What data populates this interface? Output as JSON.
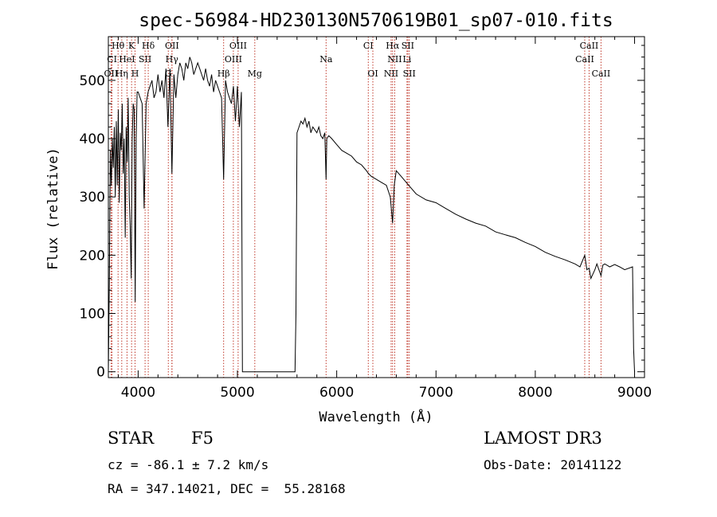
{
  "chart_data": {
    "type": "line",
    "title": "spec-56984-HD230130N570619B01_sp07-010.fits",
    "xlabel": "Wavelength (Å)",
    "ylabel": "Flux (relative)",
    "xlim": [
      3700,
      9100
    ],
    "ylim": [
      -10,
      575
    ],
    "xticks": [
      4000,
      5000,
      6000,
      7000,
      8000,
      9000
    ],
    "yticks": [
      0,
      100,
      200,
      300,
      400,
      500
    ],
    "series": [
      {
        "name": "flux",
        "x": [
          3700,
          3710,
          3720,
          3730,
          3740,
          3750,
          3760,
          3770,
          3780,
          3790,
          3800,
          3810,
          3820,
          3830,
          3840,
          3850,
          3860,
          3870,
          3880,
          3890,
          3900,
          3910,
          3920,
          3930,
          3940,
          3950,
          3960,
          3970,
          3980,
          3990,
          4000,
          4020,
          4040,
          4060,
          4080,
          4100,
          4120,
          4140,
          4160,
          4180,
          4200,
          4220,
          4240,
          4260,
          4280,
          4300,
          4320,
          4340,
          4360,
          4380,
          4400,
          4420,
          4440,
          4460,
          4480,
          4500,
          4520,
          4540,
          4560,
          4580,
          4600,
          4620,
          4640,
          4660,
          4680,
          4700,
          4720,
          4740,
          4760,
          4780,
          4800,
          4820,
          4840,
          4861,
          4880,
          4900,
          4920,
          4940,
          4960,
          4980,
          5000,
          5010,
          5020,
          5040,
          5050,
          5580,
          5590,
          5600,
          5620,
          5640,
          5660,
          5680,
          5700,
          5720,
          5740,
          5760,
          5780,
          5800,
          5820,
          5840,
          5860,
          5880,
          5893,
          5900,
          5920,
          5950,
          6000,
          6050,
          6100,
          6150,
          6200,
          6250,
          6300,
          6320,
          6350,
          6400,
          6450,
          6500,
          6540,
          6563,
          6580,
          6600,
          6650,
          6700,
          6750,
          6800,
          6900,
          7000,
          7100,
          7200,
          7300,
          7400,
          7500,
          7600,
          7700,
          7800,
          7900,
          8000,
          8100,
          8200,
          8300,
          8400,
          8450,
          8498,
          8520,
          8542,
          8560,
          8600,
          8620,
          8662,
          8680,
          8700,
          8750,
          8800,
          8850,
          8900,
          8980,
          8990,
          9000
        ],
        "values": [
          0,
          150,
          380,
          320,
          400,
          350,
          420,
          300,
          430,
          320,
          450,
          290,
          410,
          380,
          460,
          340,
          400,
          230,
          420,
          360,
          470,
          300,
          250,
          160,
          400,
          460,
          450,
          120,
          400,
          480,
          480,
          470,
          460,
          280,
          460,
          480,
          490,
          500,
          470,
          480,
          510,
          480,
          500,
          470,
          520,
          420,
          520,
          340,
          510,
          470,
          510,
          530,
          520,
          500,
          530,
          520,
          540,
          530,
          510,
          520,
          530,
          520,
          510,
          500,
          520,
          500,
          490,
          510,
          480,
          500,
          490,
          480,
          470,
          330,
          500,
          480,
          470,
          460,
          490,
          430,
          490,
          450,
          420,
          480,
          0,
          0,
          100,
          410,
          420,
          430,
          425,
          435,
          420,
          430,
          410,
          420,
          415,
          410,
          420,
          405,
          400,
          410,
          330,
          400,
          405,
          400,
          390,
          380,
          375,
          370,
          360,
          355,
          345,
          340,
          335,
          330,
          325,
          320,
          300,
          255,
          320,
          345,
          335,
          325,
          315,
          305,
          295,
          290,
          280,
          270,
          262,
          255,
          250,
          240,
          235,
          230,
          222,
          215,
          205,
          198,
          192,
          185,
          180,
          200,
          175,
          178,
          160,
          175,
          185,
          165,
          183,
          185,
          180,
          184,
          180,
          175,
          180,
          40,
          0
        ],
        "note": "values sampled approximately from the plotted spectrum"
      }
    ],
    "lines": [
      {
        "label": "Hθ",
        "x": 3798,
        "row": 0
      },
      {
        "label": "K",
        "x": 3934,
        "row": 0
      },
      {
        "label": "Hδ",
        "x": 4102,
        "row": 0
      },
      {
        "label": "OII",
        "x": 4341,
        "row": 0
      },
      {
        "label": "OIII",
        "x": 5007,
        "row": 0
      },
      {
        "label": "CI",
        "x": 6318,
        "row": 0
      },
      {
        "label": "Hα",
        "x": 6563,
        "row": 0
      },
      {
        "label": "SII",
        "x": 6716,
        "row": 0
      },
      {
        "label": "CaII",
        "x": 8542,
        "row": 0
      },
      {
        "label": "CI",
        "x": 3737,
        "row": 1
      },
      {
        "label": "HeI",
        "x": 3888,
        "row": 1
      },
      {
        "label": "SII",
        "x": 4070,
        "row": 1
      },
      {
        "label": "Hγ",
        "x": 4340,
        "row": 1
      },
      {
        "label": "OIII",
        "x": 4959,
        "row": 1
      },
      {
        "label": "Na",
        "x": 5893,
        "row": 1
      },
      {
        "label": "NII",
        "x": 6584,
        "row": 1
      },
      {
        "label": "Li",
        "x": 6708,
        "row": 1
      },
      {
        "label": "CaII",
        "x": 8498,
        "row": 1
      },
      {
        "label": "OII",
        "x": 3727,
        "row": 2
      },
      {
        "label": "Hη",
        "x": 3835,
        "row": 2
      },
      {
        "label": "H",
        "x": 3969,
        "row": 2
      },
      {
        "label": "G",
        "x": 4304,
        "row": 2
      },
      {
        "label": "Hβ",
        "x": 4861,
        "row": 2
      },
      {
        "label": "Mg",
        "x": 5175,
        "row": 2
      },
      {
        "label": "OI",
        "x": 6364,
        "row": 2
      },
      {
        "label": "NII",
        "x": 6548,
        "row": 2
      },
      {
        "label": "SII",
        "x": 6731,
        "row": 2
      },
      {
        "label": "CaII",
        "x": 8662,
        "row": 2
      }
    ]
  },
  "info": {
    "object_type": "STAR",
    "subclass": "F5",
    "survey": "LAMOST DR3",
    "cz": "cz = -86.1 ± 7.2 km/s",
    "obs_date": "Obs-Date: 20141122",
    "radec": "RA = 347.14021, DEC =  55.28168"
  },
  "colors": {
    "line_markers": "#c0392b",
    "spectrum": "#000000"
  }
}
